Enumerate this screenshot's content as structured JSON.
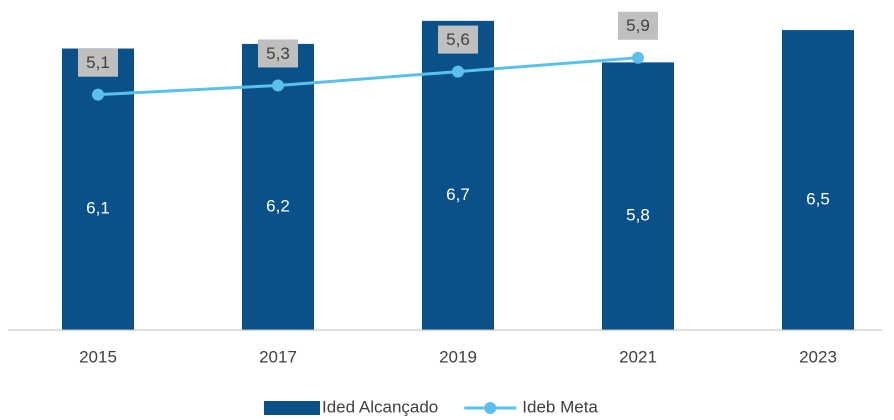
{
  "chart_data": {
    "type": "combo",
    "categories": [
      "2015",
      "2017",
      "2019",
      "2021",
      "2023"
    ],
    "series": [
      {
        "name": "Ided Alcançado",
        "type": "bar",
        "color": "#0b5189",
        "values": [
          6.1,
          6.2,
          6.7,
          5.8,
          6.5
        ],
        "value_labels": [
          "6,1",
          "6,2",
          "6,7",
          "5,8",
          "6,5"
        ]
      },
      {
        "name": "Ideb Meta",
        "type": "line",
        "color": "#5bc0eb",
        "values": [
          5.1,
          5.3,
          5.6,
          5.9,
          null
        ],
        "value_labels": [
          "5,1",
          "5,3",
          "5,6",
          "5,9",
          null
        ]
      }
    ],
    "ylim": [
      0,
      7
    ]
  }
}
